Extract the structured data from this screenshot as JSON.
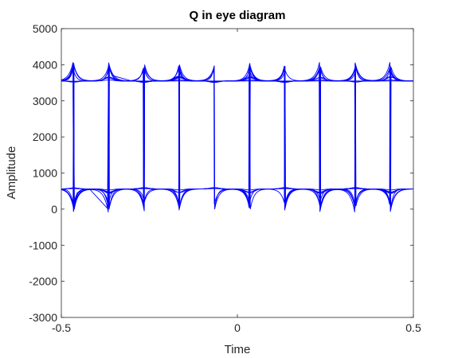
{
  "chart_data": {
    "type": "line",
    "title": "Q in eye diagram",
    "xlabel": "Time",
    "ylabel": "Amplitude",
    "xlim": [
      -0.5,
      0.5
    ],
    "ylim": [
      -3000,
      5000
    ],
    "xticks": [
      -0.5,
      0,
      0.5
    ],
    "xtick_labels": [
      "-0.5",
      "0",
      "0.5"
    ],
    "yticks": [
      -3000,
      -2000,
      -1000,
      0,
      1000,
      2000,
      3000,
      4000,
      5000
    ],
    "ytick_labels": [
      "-3000",
      "-2000",
      "-1000",
      "0",
      "1000",
      "2000",
      "3000",
      "4000",
      "5000"
    ],
    "grid": false,
    "legend": "none",
    "line_color": "#0000ff",
    "levels": {
      "high": 3550,
      "low": 560
    },
    "transition_times": [
      -0.465,
      -0.365,
      -0.265,
      -0.165,
      -0.065,
      0.035,
      0.135,
      0.235,
      0.335,
      0.435
    ],
    "overshoot_peak": 4000,
    "undershoot_min": 0,
    "series": [
      {
        "values": [
          {
            "x": -0.5,
            "y": 3550
          },
          {
            "x": -0.48,
            "y": 3600
          },
          {
            "x": -0.466,
            "y": 3980
          },
          {
            "x": -0.463,
            "y": 100
          },
          {
            "x": -0.455,
            "y": 450
          },
          {
            "x": -0.42,
            "y": 560
          },
          {
            "x": -0.369,
            "y": 20
          },
          {
            "x": -0.366,
            "y": 4000
          },
          {
            "x": -0.355,
            "y": 3700
          },
          {
            "x": -0.3,
            "y": 3550
          },
          {
            "x": 0.5,
            "y": 3550
          }
        ]
      }
    ]
  }
}
